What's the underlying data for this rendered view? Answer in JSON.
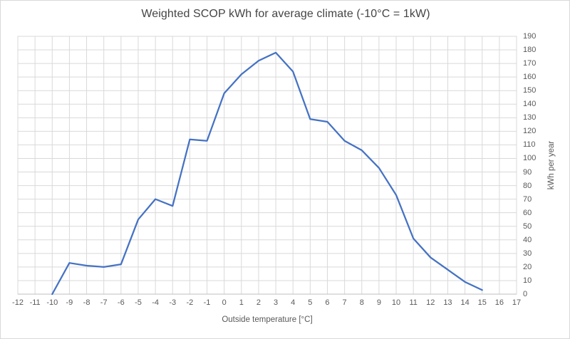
{
  "chart_data": {
    "type": "line",
    "title": "Weighted SCOP kWh for average climate (-10°C = 1kW)",
    "xlabel": "Outside temperature [°C]",
    "ylabel": "kWh per year",
    "x": [
      -10,
      -9,
      -8,
      -7,
      -6,
      -5,
      -4,
      -3,
      -2,
      -1,
      0,
      1,
      2,
      3,
      4,
      5,
      6,
      7,
      8,
      9,
      10,
      11,
      12,
      13,
      14,
      15
    ],
    "values": [
      0,
      23,
      21,
      20,
      22,
      55,
      70,
      65,
      114,
      113,
      148,
      162,
      172,
      178,
      164,
      129,
      127,
      113,
      106,
      93,
      73,
      41,
      27,
      18,
      9,
      3
    ],
    "x_ticks": [
      -12,
      -11,
      -10,
      -9,
      -8,
      -7,
      -6,
      -5,
      -4,
      -3,
      -2,
      -1,
      0,
      1,
      2,
      3,
      4,
      5,
      6,
      7,
      8,
      9,
      10,
      11,
      12,
      13,
      14,
      15,
      16,
      17
    ],
    "y_ticks": [
      0,
      10,
      20,
      30,
      40,
      50,
      60,
      70,
      80,
      90,
      100,
      110,
      120,
      130,
      140,
      150,
      160,
      170,
      180,
      190
    ],
    "xlim": [
      -12,
      17
    ],
    "ylim": [
      0,
      190
    ],
    "grid": true,
    "legend": false,
    "y_axis_side": "right",
    "line_color": "#4472C4",
    "gridline_color": "#d9d9d9",
    "axis_line_color": "#bfbfbf",
    "text_color": "#595959"
  }
}
